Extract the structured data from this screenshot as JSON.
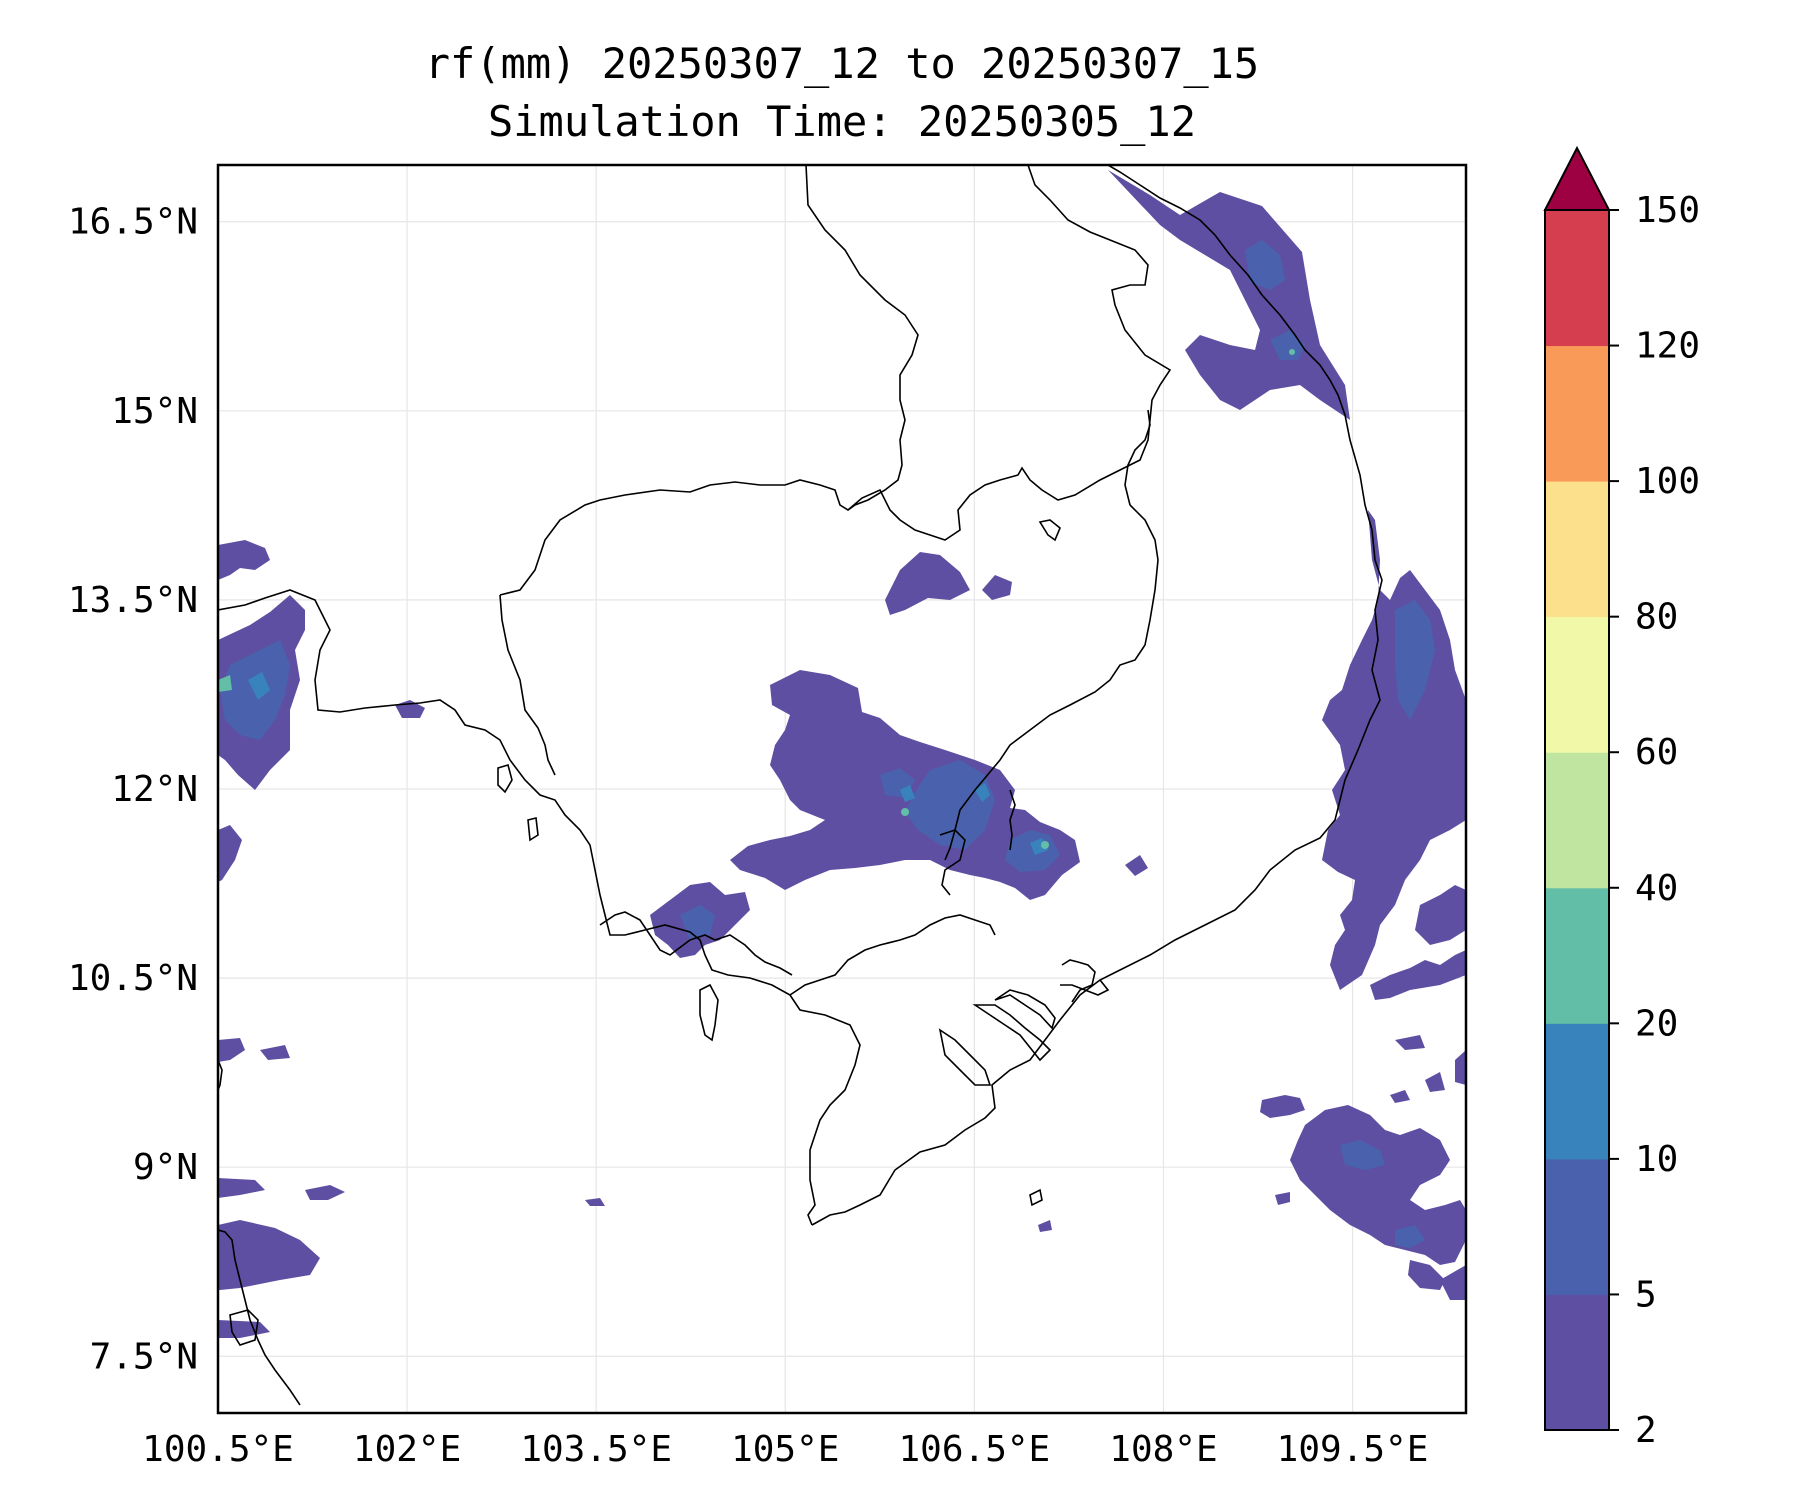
{
  "title": {
    "line1": "rf(mm) 20250307_12 to 20250307_15",
    "line2": "Simulation Time: 20250305_12"
  },
  "map": {
    "lon_range": [
      100.5,
      110.4
    ],
    "lat_range": [
      7.05,
      16.95
    ],
    "x_ticks": [
      {
        "value": 100.5,
        "label": "100.5°E"
      },
      {
        "value": 102.0,
        "label": "102°E"
      },
      {
        "value": 103.5,
        "label": "103.5°E"
      },
      {
        "value": 105.0,
        "label": "105°E"
      },
      {
        "value": 106.5,
        "label": "106.5°E"
      },
      {
        "value": 108.0,
        "label": "108°E"
      },
      {
        "value": 109.5,
        "label": "109.5°E"
      }
    ],
    "y_ticks": [
      {
        "value": 16.5,
        "label": "16.5°N"
      },
      {
        "value": 15.0,
        "label": "15°N"
      },
      {
        "value": 13.5,
        "label": "13.5°N"
      },
      {
        "value": 12.0,
        "label": "12°N"
      },
      {
        "value": 10.5,
        "label": "10.5°N"
      },
      {
        "value": 9.0,
        "label": "9°N"
      },
      {
        "value": 7.5,
        "label": "7.5°N"
      }
    ],
    "grid": true
  },
  "colorbar": {
    "levels": [
      {
        "label": "2",
        "color": "#5e4fa2"
      },
      {
        "label": "5",
        "color": "#4a62ad"
      },
      {
        "label": "10",
        "color": "#3983bc"
      },
      {
        "label": "20",
        "color": "#62bea6"
      },
      {
        "label": "40",
        "color": "#bfe5a0"
      },
      {
        "label": "60",
        "color": "#f1f9a9"
      },
      {
        "label": "80",
        "color": "#fde08b"
      },
      {
        "label": "100",
        "color": "#f99a59"
      },
      {
        "label": "120",
        "color": "#d53e4f"
      },
      {
        "label": "150",
        "color": "#9e0142"
      }
    ],
    "extend": "max"
  }
}
